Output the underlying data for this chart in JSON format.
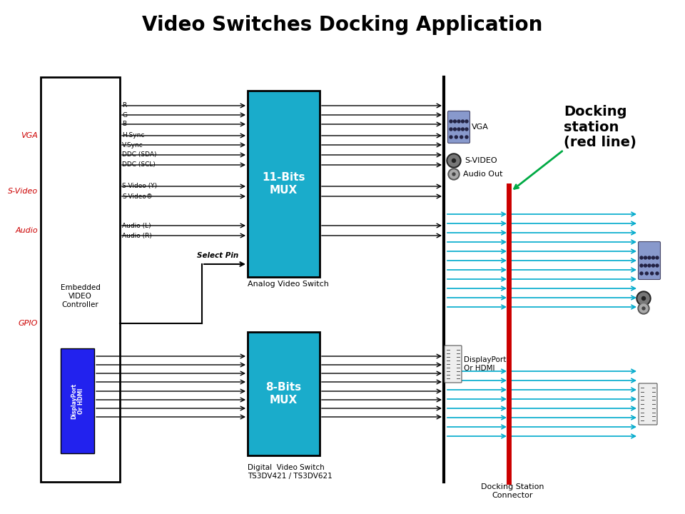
{
  "title": "Video Switches Docking Application",
  "title_fontsize": 20,
  "title_fontweight": "bold",
  "bg_color": "#ffffff",
  "teal_color": "#1AACCB",
  "blue_box_color": "#2222EE",
  "red_line_color": "#CC0000",
  "black": "#000000",
  "red_label": "#CC0000",
  "green_arrow": "#00AA44",
  "cyan_line": "#00AACC",
  "vga_label_lines": [
    "R",
    "G",
    "B",
    "H.Sync",
    "V.Sync",
    "DDC (SDA)",
    "DDC (SCL)"
  ],
  "svideo_label_lines": [
    "S-Video (Y)",
    "S-Video®"
  ],
  "audio_label_lines": [
    "Audio (L)",
    "Audio (R)"
  ],
  "mux11_label": "11-Bits\nMUX",
  "mux8_label": "8-Bits\nMUX",
  "analog_switch_label": "Analog Video Switch",
  "digital_switch_label": "Digital  Video Switch\nTS3DV421 / TS3DV621",
  "embedded_label": "Embedded\nVIDEO\nController",
  "select_pin_label": "Select Pin",
  "vga_label": "VGA",
  "svideo_label": "S-Video",
  "audio_label": "Audio",
  "gpio_label": "GPIO",
  "docking_label": "Docking\nstation\n(red line)",
  "docking_connector_label": "Docking Station\nConnector",
  "vga_right_label": "VGA",
  "svideo_right_label": "S-VIDEO",
  "audio_out_label": "Audio Out",
  "dp_hdmi_left_label": "DisplayPort\nOr HDMI",
  "dp_hdmi_right_label": "DisplayPort\nOr HDMI",
  "dp_box_label": "DisplayPort\nOr HDMI"
}
